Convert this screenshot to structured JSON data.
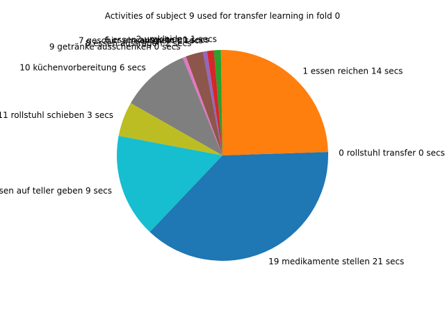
{
  "chart_data": {
    "type": "pie",
    "title": "Activities of subject 9 used for transfer learning in fold 0",
    "start_angle_deg": 0,
    "direction": "counterclockwise",
    "slices": [
      {
        "label": "0 rollstuhl transfer 0 secs",
        "value": 0.3,
        "color": "#1f77b4"
      },
      {
        "label": "1 essen reichen 14 secs",
        "value": 14,
        "color": "#ff7f0e"
      },
      {
        "label": "2 umkleiden 1 secs",
        "value": 0.6,
        "color": "#2ca02c"
      },
      {
        "label": "6 essen ausgeben 1 secs",
        "value": 0.6,
        "color": "#d62728"
      },
      {
        "label": "7 geschirr einsammeln 0 secs",
        "value": 0.35,
        "color": "#9467bd"
      },
      {
        "label": "8 essen austragen 2 secs",
        "value": 1.5,
        "color": "#8c564b"
      },
      {
        "label": "9 getränke ausschenken 0 secs",
        "value": 0.3,
        "color": "#e377c2"
      },
      {
        "label": "10 küchenvorbereitung 6 secs",
        "value": 6,
        "color": "#7f7f7f"
      },
      {
        "label": "11 rollstuhl schieben 3 secs",
        "value": 3,
        "color": "#bcbd22"
      },
      {
        "label": "15 essen auf teller geben 9 secs",
        "value": 9,
        "color": "#17becf"
      },
      {
        "label": "19 medikamente stellen 21 secs",
        "value": 21,
        "color": "#1f77b4"
      }
    ]
  }
}
